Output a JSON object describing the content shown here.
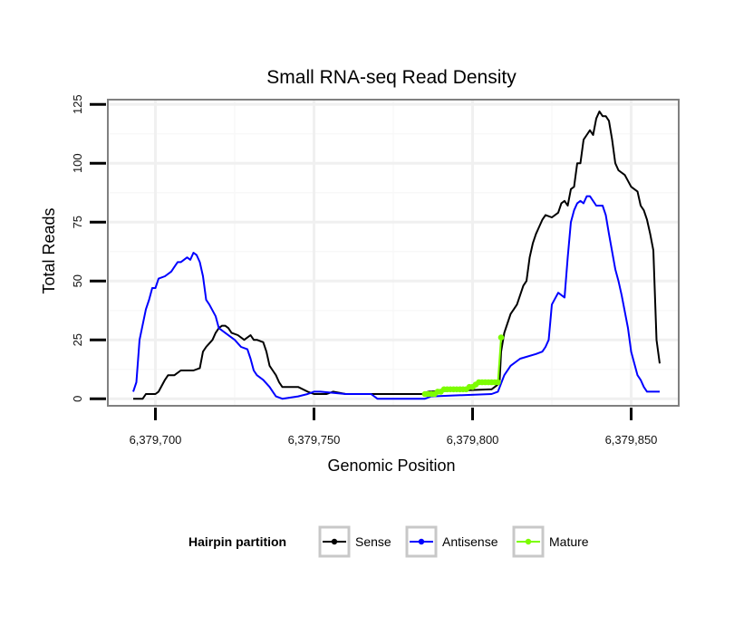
{
  "chart_data": {
    "type": "line",
    "title": "Small RNA-seq Read Density",
    "xlabel": "Genomic Position",
    "ylabel": "Total Reads",
    "xlim": [
      6379685,
      6379865
    ],
    "ylim": [
      -3,
      127
    ],
    "x_ticks": [
      6379700,
      6379750,
      6379800,
      6379850
    ],
    "x_tick_labels": [
      "6,379,700",
      "6,379,750",
      "6,379,800",
      "6,379,850"
    ],
    "y_ticks": [
      0,
      25,
      50,
      75,
      100,
      125
    ],
    "y_tick_labels": [
      "0",
      "25",
      "50",
      "75",
      "100",
      "125"
    ],
    "grid": true,
    "legend": {
      "title": "Hairpin partition",
      "position": "bottom",
      "entries": [
        "Sense",
        "Antisense",
        "Mature"
      ]
    },
    "series": [
      {
        "name": "Sense",
        "color": "#000000",
        "x": [
          6379693,
          6379696,
          6379697,
          6379700,
          6379701,
          6379703,
          6379704,
          6379706,
          6379708,
          6379710,
          6379712,
          6379714,
          6379715,
          6379716,
          6379718,
          6379719,
          6379720,
          6379721,
          6379722,
          6379723,
          6379724,
          6379726,
          6379728,
          6379730,
          6379731,
          6379732,
          6379734,
          6379735,
          6379736,
          6379737,
          6379738,
          6379739,
          6379740,
          6379745,
          6379748,
          6379750,
          6379752,
          6379754,
          6379756,
          6379760,
          6379784,
          6379786,
          6379806,
          6379808,
          6379808.5,
          6379809,
          6379810,
          6379811,
          6379812,
          6379813,
          6379814,
          6379816,
          6379817,
          6379818,
          6379819,
          6379820,
          6379821,
          6379822,
          6379823,
          6379825,
          6379827,
          6379828,
          6379829,
          6379830,
          6379831,
          6379832,
          6379833,
          6379834,
          6379835,
          6379836,
          6379837,
          6379838,
          6379839,
          6379840,
          6379841,
          6379842,
          6379843,
          6379844,
          6379845,
          6379846,
          6379848,
          6379850,
          6379852,
          6379853,
          6379854,
          6379855,
          6379856,
          6379857,
          6379858,
          6379859
        ],
        "values": [
          0,
          0,
          2,
          2,
          3,
          8,
          10,
          10,
          12,
          12,
          12,
          13,
          20,
          22,
          25,
          28,
          30,
          31,
          31,
          30,
          28,
          27,
          25,
          27,
          25,
          25,
          24,
          20,
          14,
          12,
          10,
          7,
          5,
          5,
          3,
          2,
          2,
          2,
          3,
          2,
          2,
          3,
          4,
          6,
          7,
          20,
          28,
          32,
          36,
          38,
          40,
          48,
          50,
          60,
          66,
          70,
          73,
          76,
          78,
          77,
          79,
          83,
          84,
          82,
          89,
          90,
          100,
          100,
          110,
          112,
          114,
          112,
          119,
          122,
          120,
          120,
          118,
          110,
          100,
          97,
          95,
          90,
          88,
          82,
          80,
          76,
          70,
          63,
          25,
          15
        ]
      },
      {
        "name": "Antisense",
        "color": "#0000ff",
        "x": [
          6379693,
          6379694,
          6379695,
          6379697,
          6379698,
          6379699,
          6379700,
          6379701,
          6379703,
          6379705,
          6379706,
          6379707,
          6379708,
          6379709,
          6379710,
          6379711,
          6379712,
          6379713,
          6379714,
          6379715,
          6379716,
          6379717,
          6379719,
          6379720,
          6379722,
          6379725,
          6379727,
          6379729,
          6379730,
          6379731,
          6379732,
          6379734,
          6379736,
          6379737,
          6379738,
          6379740,
          6379745,
          6379748,
          6379750,
          6379752,
          6379760,
          6379768,
          6379770,
          6379785,
          6379787,
          6379806,
          6379808,
          6379810,
          6379812,
          6379815,
          6379820,
          6379822,
          6379823,
          6379824,
          6379825,
          6379827,
          6379829,
          6379830,
          6379831,
          6379832,
          6379833,
          6379834,
          6379835,
          6379836,
          6379837,
          6379838,
          6379839,
          6379840,
          6379841,
          6379842,
          6379843,
          6379845,
          6379846,
          6379847,
          6379849,
          6379850,
          6379851,
          6379852,
          6379853,
          6379854,
          6379855,
          6379856,
          6379858,
          6379859
        ],
        "values": [
          3,
          7,
          25,
          38,
          42,
          47,
          47,
          51,
          52,
          54,
          56,
          58,
          58,
          59,
          60,
          59,
          62,
          61,
          58,
          52,
          42,
          40,
          35,
          30,
          28,
          25,
          22,
          21,
          17,
          12,
          10,
          8,
          5,
          3,
          1,
          0,
          1,
          2,
          3,
          3,
          2,
          2,
          0,
          0,
          1,
          2,
          3,
          10,
          14,
          17,
          19,
          20,
          22,
          25,
          40,
          45,
          43,
          60,
          75,
          80,
          83,
          84,
          83,
          86,
          86,
          84,
          82,
          82,
          82,
          78,
          70,
          55,
          50,
          44,
          30,
          20,
          15,
          10,
          8,
          5,
          3,
          3,
          3,
          3
        ]
      },
      {
        "name": "Mature",
        "color": "#7cfc00",
        "x": [
          6379785,
          6379786,
          6379787,
          6379788,
          6379789,
          6379790,
          6379791,
          6379792,
          6379793,
          6379794,
          6379795,
          6379796,
          6379797,
          6379798,
          6379799,
          6379800,
          6379801,
          6379802,
          6379803,
          6379804,
          6379805,
          6379806,
          6379807,
          6379808,
          6379809
        ],
        "values": [
          2,
          2,
          2,
          2,
          3,
          3,
          4,
          4,
          4,
          4,
          4,
          4,
          4,
          4,
          5,
          5,
          6,
          7,
          7,
          7,
          7,
          7,
          7,
          7,
          26
        ]
      }
    ]
  }
}
